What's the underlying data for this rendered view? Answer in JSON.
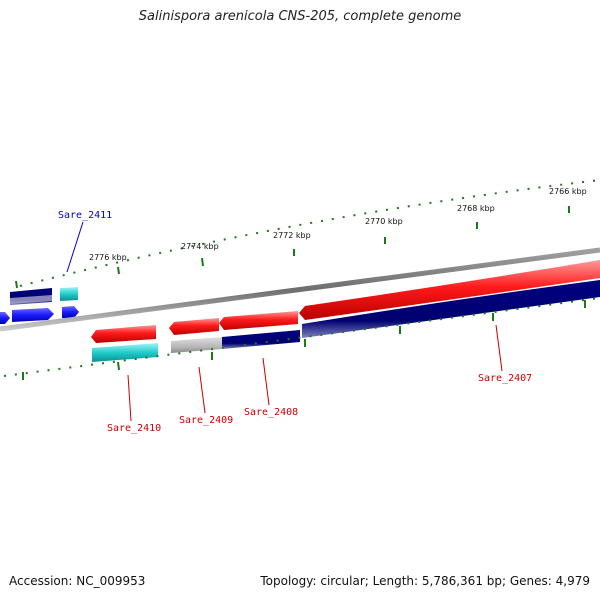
{
  "title": "Salinispora arenicola CNS-205, complete genome",
  "footer": {
    "accession": "Accession: NC_009953",
    "summary": "Topology: circular; Length: 5,786,361 bp; Genes: 4,979"
  },
  "colors": {
    "backbone": "#7a7a7a",
    "forward_cds": "#ff1a1a",
    "reverse_cds": "#000080",
    "rna": "#22cccc",
    "other": "#b8b8b8",
    "blue_feature": "#1a1aff",
    "tick": "#1a7a1a",
    "label_red": "#cc0000",
    "label_blue": "#0000cc"
  },
  "ticks": [
    {
      "label": "2776 kbp"
    },
    {
      "label": "2774 kbp"
    },
    {
      "label": "2772 kbp"
    },
    {
      "label": "2770 kbp"
    },
    {
      "label": "2768 kbp"
    },
    {
      "label": "2766 kbp"
    }
  ],
  "gene_labels": {
    "sare_2411": "Sare_2411",
    "sare_2410": "Sare_2410",
    "sare_2409": "Sare_2409",
    "sare_2408": "Sare_2408",
    "sare_2407": "Sare_2407"
  }
}
